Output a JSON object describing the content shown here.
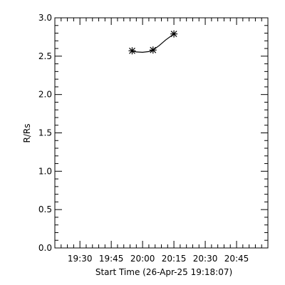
{
  "chart_data": {
    "type": "scatter",
    "xlabel": "Start Time (26-Apr-25 19:18:07)",
    "ylabel": "R/Rs",
    "x_unit": "time (hh:mm, 26-Apr-25)",
    "xlim": [
      "19:18",
      "21:00"
    ],
    "ylim": [
      0.0,
      3.0
    ],
    "x_ticks": [
      "19:30",
      "19:45",
      "20:00",
      "20:15",
      "20:30",
      "20:45"
    ],
    "y_ticks": [
      "0.0",
      "0.5",
      "1.0",
      "1.5",
      "2.0",
      "2.5",
      "3.0"
    ],
    "grid": false,
    "series": [
      {
        "marker": "asterisk",
        "x": [
          "19:55",
          "20:05",
          "20:15"
        ],
        "y": [
          2.57,
          2.58,
          2.79
        ]
      }
    ],
    "fit_curve": {
      "x": [
        "19:55",
        "19:57",
        "20:00",
        "20:03",
        "20:05",
        "20:08",
        "20:11",
        "20:15"
      ],
      "y": [
        2.57,
        2.555,
        2.55,
        2.56,
        2.58,
        2.64,
        2.71,
        2.79
      ]
    }
  }
}
